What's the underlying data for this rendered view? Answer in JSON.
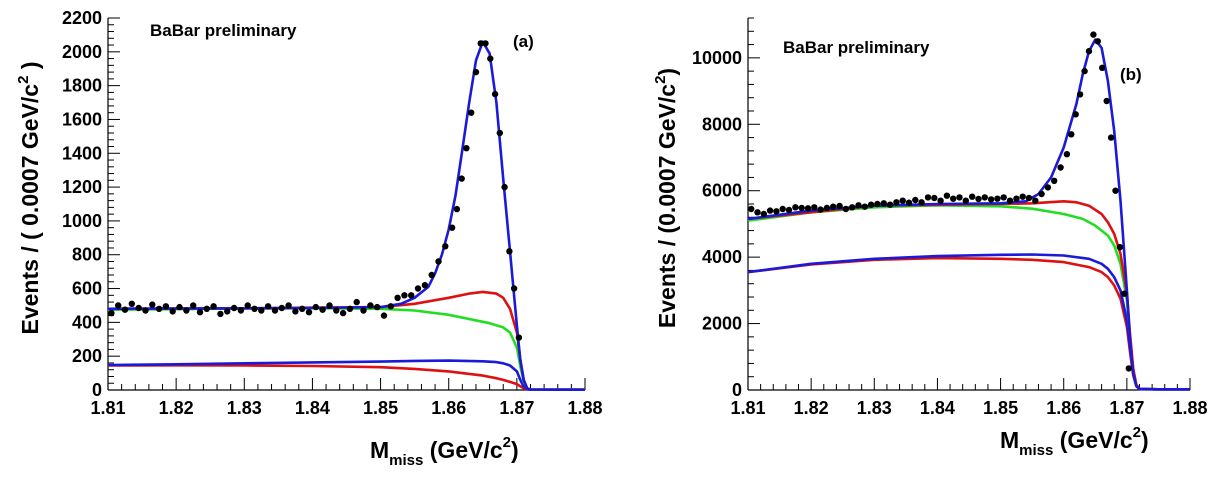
{
  "chart_data": [
    {
      "type": "line",
      "panel_label": "(a)",
      "annotation": "BaBar preliminary",
      "ylabel_main": "Events / ( 0.0007 GeV/c",
      "ylabel_sup": "2",
      "ylabel_end": " )",
      "xlabel_main": "M",
      "xlabel_sub": "miss",
      "xlabel_unit": " (GeV/c",
      "xlabel_sup": "2",
      "xlabel_end": ")",
      "xlim": [
        1.81,
        1.88
      ],
      "ylim": [
        0,
        2200
      ],
      "xticks": [
        "1.81",
        "1.82",
        "1.83",
        "1.84",
        "1.85",
        "1.86",
        "1.87",
        "1.88"
      ],
      "yticks": [
        "0",
        "200",
        "400",
        "600",
        "800",
        "1000",
        "1200",
        "1400",
        "1600",
        "1800",
        "2000",
        "2200"
      ],
      "colors": {
        "total": "#1a1ad8",
        "green": "#22dd22",
        "red": "#dd1111",
        "blue": "#1a1ad8",
        "data": "#000000"
      },
      "series": [
        {
          "role": "total",
          "color": "blue",
          "x": [
            1.81,
            1.82,
            1.83,
            1.84,
            1.85,
            1.853,
            1.855,
            1.857,
            1.858,
            1.859,
            1.86,
            1.861,
            1.862,
            1.863,
            1.864,
            1.865,
            1.866,
            1.867,
            1.868,
            1.869,
            1.87,
            1.8705,
            1.871,
            1.8715,
            1.872,
            1.875,
            1.88
          ],
          "y": [
            480,
            482,
            483,
            485,
            490,
            510,
            545,
            610,
            690,
            800,
            950,
            1150,
            1420,
            1700,
            1950,
            2060,
            1990,
            1700,
            1250,
            820,
            380,
            180,
            60,
            10,
            3,
            2,
            2
          ]
        },
        {
          "role": "green",
          "color": "green",
          "x": [
            1.81,
            1.82,
            1.83,
            1.84,
            1.85,
            1.855,
            1.86,
            1.863,
            1.866,
            1.868,
            1.869,
            1.87,
            1.8705,
            1.871,
            1.8715,
            1.872,
            1.875,
            1.88
          ],
          "y": [
            475,
            478,
            482,
            484,
            480,
            470,
            445,
            420,
            395,
            370,
            340,
            250,
            140,
            50,
            10,
            3,
            2,
            2
          ]
        },
        {
          "role": "red_upper",
          "color": "red",
          "x": [
            1.81,
            1.83,
            1.85,
            1.855,
            1.86,
            1.863,
            1.865,
            1.867,
            1.868,
            1.869,
            1.87,
            1.8705,
            1.871,
            1.8715,
            1.872,
            1.875,
            1.88
          ],
          "y": [
            480,
            483,
            490,
            510,
            545,
            570,
            580,
            570,
            545,
            480,
            340,
            180,
            60,
            10,
            3,
            2,
            2
          ]
        },
        {
          "role": "blue_lower",
          "color": "blue",
          "x": [
            1.81,
            1.82,
            1.83,
            1.84,
            1.85,
            1.855,
            1.86,
            1.865,
            1.867,
            1.868,
            1.869,
            1.87,
            1.8705,
            1.871,
            1.8715,
            1.872,
            1.875,
            1.88
          ],
          "y": [
            148,
            152,
            158,
            163,
            168,
            172,
            174,
            170,
            165,
            158,
            145,
            110,
            60,
            20,
            5,
            2,
            2,
            2
          ]
        },
        {
          "role": "red_lower",
          "color": "red",
          "x": [
            1.81,
            1.82,
            1.83,
            1.84,
            1.85,
            1.855,
            1.86,
            1.865,
            1.867,
            1.868,
            1.869,
            1.87,
            1.8705,
            1.871,
            1.8715,
            1.872,
            1.875,
            1.88
          ],
          "y": [
            145,
            146,
            145,
            142,
            135,
            125,
            110,
            85,
            70,
            60,
            48,
            35,
            22,
            10,
            3,
            2,
            2,
            2
          ]
        }
      ],
      "points": {
        "x": [
          1.8105,
          1.8115,
          1.8125,
          1.8135,
          1.8145,
          1.8155,
          1.8165,
          1.8175,
          1.8185,
          1.8195,
          1.8205,
          1.8215,
          1.8225,
          1.8235,
          1.8245,
          1.8255,
          1.8265,
          1.8275,
          1.8285,
          1.8295,
          1.8305,
          1.8315,
          1.8325,
          1.8335,
          1.8345,
          1.8355,
          1.8365,
          1.8375,
          1.8385,
          1.8395,
          1.8405,
          1.8415,
          1.8425,
          1.8435,
          1.8445,
          1.8455,
          1.8465,
          1.8475,
          1.8485,
          1.8495,
          1.8505,
          1.8515,
          1.8525,
          1.8535,
          1.8545,
          1.8555,
          1.8565,
          1.8575,
          1.8585,
          1.8595,
          1.8605,
          1.8612,
          1.8619,
          1.8626,
          1.8633,
          1.864,
          1.8647,
          1.8654,
          1.8661,
          1.8668,
          1.8675,
          1.8682,
          1.8689,
          1.8696,
          1.8703
        ],
        "y": [
          455,
          500,
          475,
          510,
          485,
          470,
          505,
          480,
          495,
          465,
          490,
          470,
          500,
          460,
          480,
          495,
          450,
          465,
          485,
          470,
          500,
          480,
          470,
          495,
          470,
          485,
          500,
          465,
          480,
          460,
          490,
          475,
          500,
          470,
          455,
          480,
          520,
          470,
          500,
          490,
          440,
          495,
          545,
          560,
          560,
          600,
          620,
          680,
          760,
          850,
          960,
          1070,
          1250,
          1430,
          1640,
          1880,
          2050,
          2050,
          1960,
          1750,
          1520,
          1200,
          820,
          600,
          310
        ]
      }
    },
    {
      "type": "line",
      "panel_label": "(b)",
      "annotation": "BaBar preliminary",
      "ylabel_main": "Events / (0.0007 GeV/c",
      "ylabel_sup": "2",
      "ylabel_end": ")",
      "xlabel_main": "M",
      "xlabel_sub": "miss",
      "xlabel_unit": " (GeV/c",
      "xlabel_sup": "2",
      "xlabel_end": ")",
      "xlim": [
        1.81,
        1.88
      ],
      "ylim": [
        0,
        11200
      ],
      "xticks": [
        "1.81",
        "1.82",
        "1.83",
        "1.84",
        "1.85",
        "1.86",
        "1.87",
        "1.88"
      ],
      "yticks": [
        "0",
        "2000",
        "4000",
        "6000",
        "8000",
        "10000"
      ],
      "colors": {
        "total": "#1a1ad8",
        "green": "#22dd22",
        "red": "#dd1111",
        "blue": "#1a1ad8",
        "data": "#000000"
      },
      "series": [
        {
          "role": "total",
          "color": "blue",
          "x": [
            1.81,
            1.82,
            1.83,
            1.84,
            1.85,
            1.854,
            1.856,
            1.858,
            1.86,
            1.862,
            1.863,
            1.864,
            1.865,
            1.866,
            1.867,
            1.868,
            1.869,
            1.87,
            1.8705,
            1.871,
            1.8715,
            1.872,
            1.875,
            1.88
          ],
          "y": [
            5150,
            5400,
            5550,
            5600,
            5620,
            5680,
            5900,
            6400,
            7300,
            8600,
            9500,
            10200,
            10550,
            10300,
            9300,
            7800,
            5700,
            3000,
            1500,
            500,
            120,
            30,
            20,
            20
          ]
        },
        {
          "role": "green",
          "color": "green",
          "x": [
            1.81,
            1.82,
            1.83,
            1.84,
            1.85,
            1.855,
            1.86,
            1.863,
            1.865,
            1.867,
            1.868,
            1.869,
            1.87,
            1.8705,
            1.871,
            1.8715,
            1.872,
            1.875,
            1.88
          ],
          "y": [
            5100,
            5350,
            5500,
            5560,
            5530,
            5460,
            5300,
            5150,
            4950,
            4650,
            4350,
            3800,
            2700,
            1600,
            600,
            150,
            30,
            20,
            20
          ]
        },
        {
          "role": "red_upper",
          "color": "red",
          "x": [
            1.81,
            1.83,
            1.85,
            1.855,
            1.86,
            1.862,
            1.864,
            1.866,
            1.867,
            1.868,
            1.869,
            1.87,
            1.8705,
            1.871,
            1.8715,
            1.872,
            1.875,
            1.88
          ],
          "y": [
            5150,
            5550,
            5600,
            5620,
            5680,
            5650,
            5550,
            5300,
            5050,
            4700,
            4100,
            2900,
            1700,
            650,
            160,
            30,
            20,
            20
          ]
        },
        {
          "role": "blue_lower",
          "color": "blue",
          "x": [
            1.81,
            1.82,
            1.83,
            1.84,
            1.85,
            1.855,
            1.86,
            1.864,
            1.866,
            1.867,
            1.868,
            1.869,
            1.87,
            1.8705,
            1.871,
            1.8715,
            1.872,
            1.875,
            1.88
          ],
          "y": [
            3550,
            3800,
            3950,
            4030,
            4070,
            4080,
            4050,
            3950,
            3800,
            3650,
            3400,
            3000,
            2100,
            1300,
            500,
            130,
            30,
            20,
            20
          ]
        },
        {
          "role": "red_lower",
          "color": "red",
          "x": [
            1.81,
            1.82,
            1.83,
            1.84,
            1.85,
            1.855,
            1.86,
            1.864,
            1.866,
            1.867,
            1.868,
            1.869,
            1.87,
            1.8705,
            1.871,
            1.8715,
            1.872,
            1.875,
            1.88
          ],
          "y": [
            3550,
            3780,
            3920,
            3970,
            3950,
            3920,
            3850,
            3700,
            3550,
            3400,
            3150,
            2750,
            1900,
            1150,
            450,
            120,
            30,
            20,
            20
          ]
        }
      ],
      "points": {
        "x": [
          1.8105,
          1.8115,
          1.8125,
          1.8135,
          1.8145,
          1.8155,
          1.8165,
          1.8175,
          1.8185,
          1.8195,
          1.8205,
          1.8215,
          1.8225,
          1.8235,
          1.8245,
          1.8255,
          1.8265,
          1.8275,
          1.8285,
          1.8295,
          1.8305,
          1.8315,
          1.8325,
          1.8335,
          1.8345,
          1.8355,
          1.8365,
          1.8375,
          1.8385,
          1.8395,
          1.8405,
          1.8415,
          1.8425,
          1.8435,
          1.8445,
          1.8455,
          1.8465,
          1.8475,
          1.8485,
          1.8495,
          1.8505,
          1.8515,
          1.8525,
          1.8535,
          1.8545,
          1.8555,
          1.8565,
          1.8575,
          1.8585,
          1.8595,
          1.8605,
          1.8612,
          1.8619,
          1.8626,
          1.8633,
          1.864,
          1.8647,
          1.8654,
          1.8661,
          1.8668,
          1.8675,
          1.8682,
          1.8689,
          1.8696,
          1.8703
        ],
        "y": [
          5450,
          5350,
          5300,
          5400,
          5380,
          5450,
          5420,
          5500,
          5480,
          5470,
          5500,
          5430,
          5480,
          5520,
          5540,
          5450,
          5500,
          5560,
          5520,
          5580,
          5600,
          5620,
          5580,
          5650,
          5700,
          5640,
          5720,
          5650,
          5800,
          5780,
          5700,
          5850,
          5760,
          5800,
          5700,
          5820,
          5750,
          5800,
          5740,
          5760,
          5800,
          5700,
          5760,
          5820,
          5780,
          5700,
          5900,
          6100,
          6300,
          6700,
          7100,
          7700,
          8300,
          8900,
          9600,
          10200,
          10700,
          10500,
          9700,
          8700,
          7600,
          6000,
          4300,
          2900,
          650
        ]
      }
    }
  ]
}
